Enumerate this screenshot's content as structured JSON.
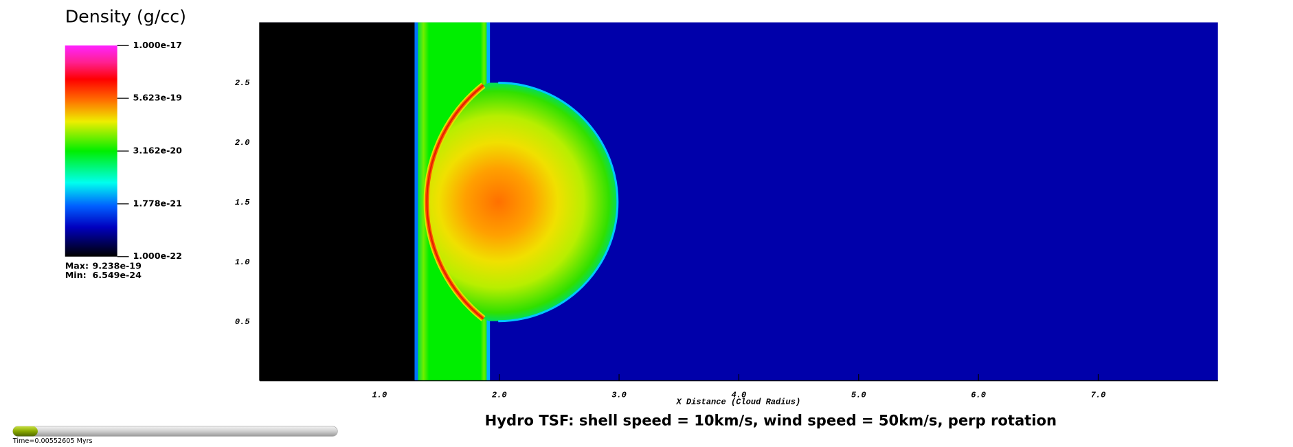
{
  "chart_data": {
    "type": "pseudocolor",
    "title": "Hydro TSF: shell speed = 10km/s, wind speed = 50km/s, perp rotation",
    "x_label": "X Distance (Cloud Radius)",
    "xlim": [
      0,
      8
    ],
    "ylim": [
      0,
      3
    ],
    "xticks": [
      {
        "value": 1,
        "label": "1.0"
      },
      {
        "value": 2,
        "label": "2.0"
      },
      {
        "value": 3,
        "label": "3.0"
      },
      {
        "value": 4,
        "label": "4.0"
      },
      {
        "value": 5,
        "label": "5.0"
      },
      {
        "value": 6,
        "label": "6.0"
      },
      {
        "value": 7,
        "label": "7.0"
      }
    ],
    "yticks": [
      {
        "value": 0.5,
        "label": "0.5"
      },
      {
        "value": 1,
        "label": "1.0"
      },
      {
        "value": 1.5,
        "label": "1.5"
      },
      {
        "value": 2,
        "label": "2.0"
      },
      {
        "value": 2.5,
        "label": "2.5"
      }
    ],
    "colorbar": {
      "title": "Density (g/cc)",
      "log_scale": true,
      "lim": [
        1e-22,
        1e-17
      ],
      "ticks": [
        {
          "value": 1e-17,
          "label": "1.000e-17"
        },
        {
          "value": 5.623e-19,
          "label": "5.623e-19"
        },
        {
          "value": 3.162e-20,
          "label": "3.162e-20"
        },
        {
          "value": 1.778e-21,
          "label": "1.778e-21"
        },
        {
          "value": 1e-22,
          "label": "1.000e-22"
        }
      ],
      "max_label": "Max:",
      "max": {
        "value": 9.238e-19,
        "label": "9.238e-19"
      },
      "min_label": "Min:",
      "min": {
        "value": 6.549e-24,
        "label": "6.549e-24"
      }
    },
    "time_label": "Time=0.00552605 Myrs"
  }
}
